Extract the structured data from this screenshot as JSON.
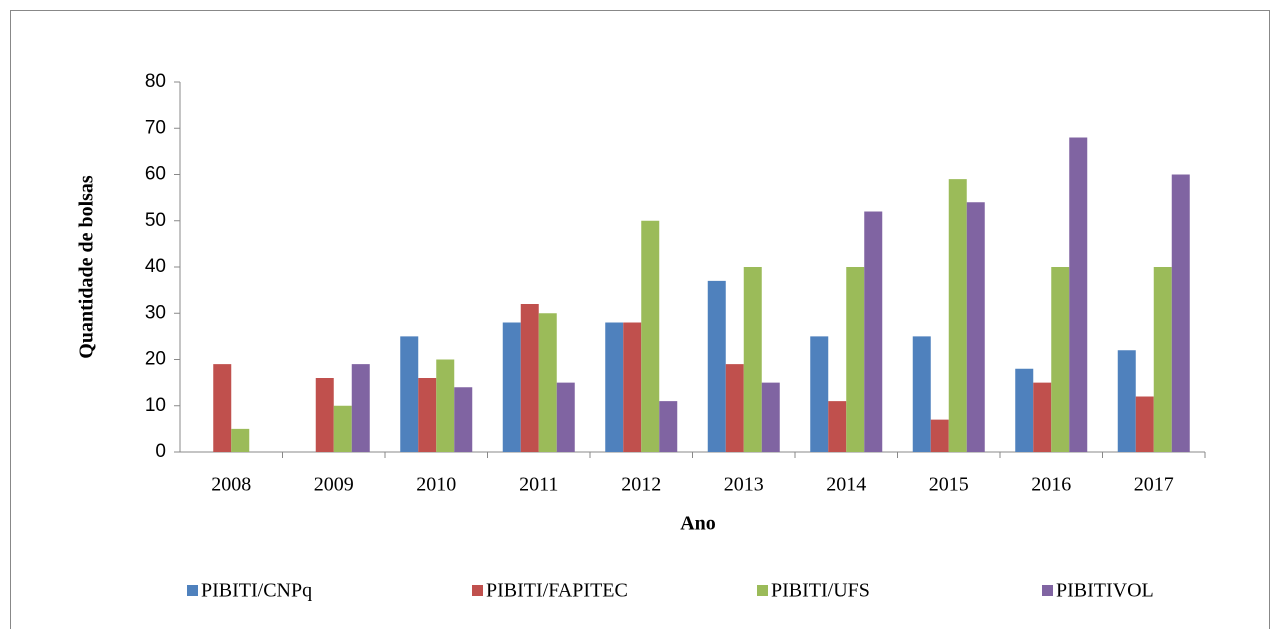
{
  "chart_data": {
    "type": "bar",
    "categories": [
      "2008",
      "2009",
      "2010",
      "2011",
      "2012",
      "2013",
      "2014",
      "2015",
      "2016",
      "2017"
    ],
    "series": [
      {
        "name": "PIBITI/CNPq",
        "color": "#4f81bd",
        "values": [
          0,
          0,
          25,
          28,
          28,
          37,
          25,
          25,
          18,
          22
        ]
      },
      {
        "name": "PIBITI/FAPITEC",
        "color": "#c0504d",
        "values": [
          19,
          16,
          16,
          32,
          28,
          19,
          11,
          7,
          15,
          12
        ]
      },
      {
        "name": "PIBITI/UFS",
        "color": "#9bbb59",
        "values": [
          5,
          10,
          20,
          30,
          50,
          40,
          40,
          59,
          40,
          40
        ]
      },
      {
        "name": "PIBITIVOL",
        "color": "#8064a2",
        "values": [
          0,
          19,
          14,
          15,
          11,
          15,
          52,
          54,
          68,
          60
        ]
      }
    ],
    "x_label": "Ano",
    "y_label": "Quantidade de bolsas",
    "ylim": [
      0,
      80
    ],
    "yticks": [
      0,
      10,
      20,
      30,
      40,
      50,
      60,
      70,
      80
    ],
    "grid": false,
    "legend": "bottom"
  }
}
